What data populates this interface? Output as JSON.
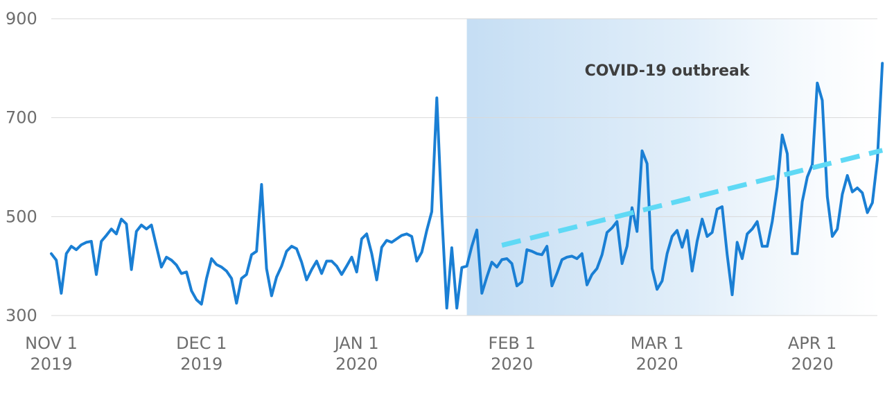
{
  "chart_data": {
    "type": "line",
    "title": "",
    "xlabel": "",
    "ylabel": "",
    "x_range": [
      "2019-11-01",
      "2020-04-14"
    ],
    "ylim": [
      300,
      900
    ],
    "y_ticks": [
      300,
      500,
      700,
      900
    ],
    "grid": "horizontal",
    "x_ticks": [
      {
        "date": "2019-11-01",
        "line1": "NOV 1",
        "line2": "2019"
      },
      {
        "date": "2019-12-01",
        "line1": "DEC 1",
        "line2": "2019"
      },
      {
        "date": "2020-01-01",
        "line1": "JAN 1",
        "line2": "2020"
      },
      {
        "date": "2020-02-01",
        "line1": "FEB 1",
        "line2": "2020"
      },
      {
        "date": "2020-03-01",
        "line1": "MAR 1",
        "line2": "2020"
      },
      {
        "date": "2020-04-01",
        "line1": "APR 1",
        "line2": "2020"
      }
    ],
    "highlight_region": {
      "start": "2020-01-23",
      "end": "2020-04-15",
      "label": "COVID-19 outbreak"
    },
    "trend_line": {
      "start": {
        "date": "2020-01-30",
        "value": 442
      },
      "end": {
        "date": "2020-04-15",
        "value": 634
      }
    },
    "series": [
      {
        "color": "#1a7fd4",
        "points": [
          [
            "2019-11-01",
            425
          ],
          [
            "2019-11-02",
            412
          ],
          [
            "2019-11-03",
            345
          ],
          [
            "2019-11-04",
            425
          ],
          [
            "2019-11-05",
            440
          ],
          [
            "2019-11-06",
            433
          ],
          [
            "2019-11-07",
            443
          ],
          [
            "2019-11-08",
            448
          ],
          [
            "2019-11-09",
            450
          ],
          [
            "2019-11-10",
            383
          ],
          [
            "2019-11-11",
            450
          ],
          [
            "2019-11-12",
            462
          ],
          [
            "2019-11-13",
            475
          ],
          [
            "2019-11-14",
            465
          ],
          [
            "2019-11-15",
            495
          ],
          [
            "2019-11-16",
            485
          ],
          [
            "2019-11-17",
            393
          ],
          [
            "2019-11-18",
            470
          ],
          [
            "2019-11-19",
            483
          ],
          [
            "2019-11-20",
            475
          ],
          [
            "2019-11-21",
            483
          ],
          [
            "2019-11-22",
            440
          ],
          [
            "2019-11-23",
            398
          ],
          [
            "2019-11-24",
            418
          ],
          [
            "2019-11-25",
            412
          ],
          [
            "2019-11-26",
            402
          ],
          [
            "2019-11-27",
            385
          ],
          [
            "2019-11-28",
            388
          ],
          [
            "2019-11-29",
            350
          ],
          [
            "2019-11-30",
            332
          ],
          [
            "2019-12-01",
            323
          ],
          [
            "2019-12-02",
            375
          ],
          [
            "2019-12-03",
            415
          ],
          [
            "2019-12-04",
            403
          ],
          [
            "2019-12-05",
            398
          ],
          [
            "2019-12-06",
            390
          ],
          [
            "2019-12-07",
            375
          ],
          [
            "2019-12-08",
            325
          ],
          [
            "2019-12-09",
            375
          ],
          [
            "2019-12-10",
            383
          ],
          [
            "2019-12-11",
            423
          ],
          [
            "2019-12-12",
            430
          ],
          [
            "2019-12-13",
            565
          ],
          [
            "2019-12-14",
            395
          ],
          [
            "2019-12-15",
            340
          ],
          [
            "2019-12-16",
            378
          ],
          [
            "2019-12-17",
            400
          ],
          [
            "2019-12-18",
            430
          ],
          [
            "2019-12-19",
            440
          ],
          [
            "2019-12-20",
            435
          ],
          [
            "2019-12-21",
            408
          ],
          [
            "2019-12-22",
            372
          ],
          [
            "2019-12-23",
            393
          ],
          [
            "2019-12-24",
            410
          ],
          [
            "2019-12-25",
            385
          ],
          [
            "2019-12-26",
            410
          ],
          [
            "2019-12-27",
            410
          ],
          [
            "2019-12-28",
            400
          ],
          [
            "2019-12-29",
            383
          ],
          [
            "2019-12-30",
            400
          ],
          [
            "2019-12-31",
            418
          ],
          [
            "2020-01-01",
            388
          ],
          [
            "2020-01-02",
            455
          ],
          [
            "2020-01-03",
            465
          ],
          [
            "2020-01-04",
            425
          ],
          [
            "2020-01-05",
            372
          ],
          [
            "2020-01-06",
            438
          ],
          [
            "2020-01-07",
            452
          ],
          [
            "2020-01-08",
            448
          ],
          [
            "2020-01-09",
            455
          ],
          [
            "2020-01-10",
            462
          ],
          [
            "2020-01-11",
            465
          ],
          [
            "2020-01-12",
            460
          ],
          [
            "2020-01-13",
            410
          ],
          [
            "2020-01-14",
            428
          ],
          [
            "2020-01-15",
            472
          ],
          [
            "2020-01-16",
            510
          ],
          [
            "2020-01-17",
            740
          ],
          [
            "2020-01-18",
            505
          ],
          [
            "2020-01-19",
            315
          ],
          [
            "2020-01-20",
            437
          ],
          [
            "2020-01-21",
            315
          ],
          [
            "2020-01-22",
            397
          ],
          [
            "2020-01-23",
            400
          ],
          [
            "2020-01-24",
            440
          ],
          [
            "2020-01-25",
            473
          ],
          [
            "2020-01-26",
            345
          ],
          [
            "2020-01-27",
            378
          ],
          [
            "2020-01-28",
            408
          ],
          [
            "2020-01-29",
            398
          ],
          [
            "2020-01-30",
            413
          ],
          [
            "2020-01-31",
            415
          ],
          [
            "2020-02-01",
            405
          ],
          [
            "2020-02-02",
            360
          ],
          [
            "2020-02-03",
            368
          ],
          [
            "2020-02-04",
            433
          ],
          [
            "2020-02-05",
            430
          ],
          [
            "2020-02-06",
            425
          ],
          [
            "2020-02-07",
            423
          ],
          [
            "2020-02-08",
            440
          ],
          [
            "2020-02-09",
            360
          ],
          [
            "2020-02-10",
            385
          ],
          [
            "2020-02-11",
            413
          ],
          [
            "2020-02-12",
            418
          ],
          [
            "2020-02-13",
            420
          ],
          [
            "2020-02-14",
            415
          ],
          [
            "2020-02-15",
            425
          ],
          [
            "2020-02-16",
            362
          ],
          [
            "2020-02-17",
            383
          ],
          [
            "2020-02-18",
            395
          ],
          [
            "2020-02-19",
            423
          ],
          [
            "2020-02-20",
            468
          ],
          [
            "2020-02-21",
            477
          ],
          [
            "2020-02-22",
            490
          ],
          [
            "2020-02-23",
            405
          ],
          [
            "2020-02-24",
            440
          ],
          [
            "2020-02-25",
            518
          ],
          [
            "2020-02-26",
            470
          ],
          [
            "2020-02-27",
            633
          ],
          [
            "2020-02-28",
            607
          ],
          [
            "2020-02-29",
            395
          ],
          [
            "2020-03-01",
            353
          ],
          [
            "2020-03-02",
            370
          ],
          [
            "2020-03-03",
            425
          ],
          [
            "2020-03-04",
            460
          ],
          [
            "2020-03-05",
            472
          ],
          [
            "2020-03-06",
            438
          ],
          [
            "2020-03-07",
            472
          ],
          [
            "2020-03-08",
            390
          ],
          [
            "2020-03-09",
            450
          ],
          [
            "2020-03-10",
            495
          ],
          [
            "2020-03-11",
            460
          ],
          [
            "2020-03-12",
            468
          ],
          [
            "2020-03-13",
            515
          ],
          [
            "2020-03-14",
            520
          ],
          [
            "2020-03-15",
            423
          ],
          [
            "2020-03-16",
            342
          ],
          [
            "2020-03-17",
            448
          ],
          [
            "2020-03-18",
            415
          ],
          [
            "2020-03-19",
            465
          ],
          [
            "2020-03-20",
            475
          ],
          [
            "2020-03-21",
            490
          ],
          [
            "2020-03-22",
            440
          ],
          [
            "2020-03-23",
            440
          ],
          [
            "2020-03-24",
            490
          ],
          [
            "2020-03-25",
            560
          ],
          [
            "2020-03-26",
            665
          ],
          [
            "2020-03-27",
            627
          ],
          [
            "2020-03-28",
            425
          ],
          [
            "2020-03-29",
            425
          ],
          [
            "2020-03-30",
            530
          ],
          [
            "2020-03-31",
            580
          ],
          [
            "2020-04-01",
            605
          ],
          [
            "2020-04-02",
            770
          ],
          [
            "2020-04-03",
            735
          ],
          [
            "2020-04-04",
            540
          ],
          [
            "2020-04-05",
            460
          ],
          [
            "2020-04-06",
            475
          ],
          [
            "2020-04-07",
            545
          ],
          [
            "2020-04-08",
            583
          ],
          [
            "2020-04-09",
            550
          ],
          [
            "2020-04-10",
            558
          ],
          [
            "2020-04-11",
            548
          ],
          [
            "2020-04-12",
            508
          ],
          [
            "2020-04-13",
            528
          ],
          [
            "2020-04-14",
            615
          ],
          [
            "2020-04-15",
            810
          ]
        ]
      }
    ]
  }
}
